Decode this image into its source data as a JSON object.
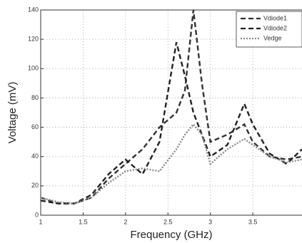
{
  "chart_data": {
    "type": "line",
    "x_label": "Frequency (GHz)",
    "y_label": "Voltage (mV)",
    "x": [
      1,
      1.2,
      1.4,
      1.6,
      1.8,
      2,
      2.2,
      2.4,
      2.6,
      2.7,
      2.8,
      2.9,
      3,
      3.2,
      3.4,
      3.5,
      3.7,
      3.9,
      4.08
    ],
    "series": [
      {
        "name": "Vdiode1",
        "color": "#333333",
        "style": "dashed",
        "values": [
          12,
          8,
          8,
          12,
          25,
          35,
          45,
          60,
          70,
          85,
          140,
          90,
          50,
          55,
          62,
          50,
          40,
          38,
          40
        ]
      },
      {
        "name": "Vdiode2",
        "color": "#222222",
        "style": "dashed",
        "values": [
          10,
          8,
          8,
          14,
          28,
          38,
          28,
          50,
          118,
          95,
          70,
          55,
          40,
          48,
          76,
          62,
          42,
          35,
          45
        ]
      },
      {
        "name": "Vedge",
        "color": "#888888",
        "style": "dotted",
        "values": [
          12,
          9,
          8,
          12,
          22,
          30,
          32,
          30,
          45,
          55,
          62,
          55,
          35,
          45,
          52,
          48,
          40,
          36,
          38
        ]
      }
    ],
    "xlim": [
      1,
      4.08
    ],
    "ylim": [
      0,
      140
    ],
    "xticks": [
      1,
      1.5,
      2,
      2.5,
      3,
      3.5
    ],
    "yticks": [
      0,
      20,
      40,
      60,
      80,
      100,
      120,
      140
    ],
    "grid": true,
    "legend": "upper-right"
  }
}
